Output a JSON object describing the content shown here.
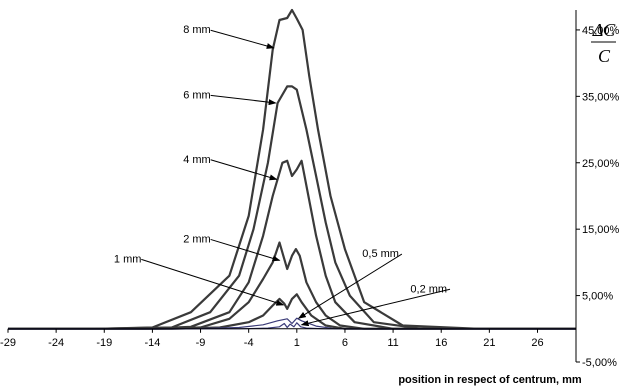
{
  "chart_data": {
    "type": "line",
    "xlabel": "position in respect of centrum, mm",
    "ylabel": {
      "numerator": "ΔC",
      "denominator": "C"
    },
    "xlim": [
      -29,
      30
    ],
    "ylim": [
      -5,
      48
    ],
    "x_ticks": [
      -29,
      -24,
      -19,
      -14,
      -9,
      -4,
      1,
      6,
      11,
      16,
      21,
      26
    ],
    "x_tick_labels": [
      "-29",
      "-24",
      "-19",
      "-14",
      "-9",
      "-4",
      "1",
      "6",
      "11",
      "16",
      "21",
      "26"
    ],
    "y_ticks": [
      -5,
      5,
      15,
      25,
      35,
      45
    ],
    "y_tick_labels": [
      "-5,00%",
      "5,00%",
      "15,00%",
      "25,00%",
      "35,00%",
      "45,00%"
    ],
    "legend": "none",
    "grid": false,
    "series": [
      {
        "name": "8 mm",
        "x": [
          -29,
          -20,
          -14,
          -10,
          -6,
          -4,
          -2.5,
          -1.5,
          -0.8,
          0,
          0.5,
          1,
          1.6,
          2.3,
          3.2,
          4.5,
          6,
          8,
          12,
          20,
          30
        ],
        "y": [
          0,
          0,
          0.2,
          2.5,
          8,
          17,
          30,
          42,
          46.5,
          46.8,
          48,
          46.7,
          45,
          38,
          30,
          20,
          12,
          4,
          0.5,
          0,
          0
        ]
      },
      {
        "name": "6 mm",
        "x": [
          -29,
          -20,
          -12,
          -8,
          -5,
          -3.5,
          -2,
          -1,
          0,
          0.5,
          1,
          2,
          3,
          4,
          5,
          6.5,
          9,
          14,
          30
        ],
        "y": [
          0,
          0,
          0.2,
          2.5,
          8,
          15,
          25,
          34,
          36.5,
          36.5,
          36,
          30,
          23,
          16,
          10,
          5,
          1,
          0,
          0
        ]
      },
      {
        "name": "4 mm",
        "x": [
          -29,
          -15,
          -10,
          -6,
          -4,
          -2.5,
          -1.5,
          -0.5,
          0,
          0.5,
          1,
          1.5,
          2.2,
          3,
          4,
          5,
          7,
          11,
          30
        ],
        "y": [
          0,
          0,
          0.3,
          2.5,
          7,
          14,
          20,
          25,
          25.3,
          23,
          24,
          25.3,
          20,
          14,
          8,
          4,
          1,
          0,
          0
        ]
      },
      {
        "name": "2 mm",
        "x": [
          -29,
          -14,
          -9,
          -6,
          -4,
          -2.5,
          -1.5,
          -0.8,
          -0.4,
          0,
          0.5,
          0.9,
          1.3,
          2,
          3,
          4,
          5.5,
          8,
          30
        ],
        "y": [
          0,
          0,
          0.2,
          1.5,
          4,
          7.5,
          10,
          13,
          11,
          9,
          11,
          12,
          11,
          7,
          4,
          2,
          0.5,
          0,
          0
        ]
      },
      {
        "name": "1 mm",
        "x": [
          -29,
          -12,
          -7,
          -4,
          -2.5,
          -1.5,
          -0.8,
          -0.3,
          0,
          0.5,
          1,
          1.5,
          2.5,
          4,
          6,
          30
        ],
        "y": [
          0,
          0,
          0.2,
          1,
          2,
          3.5,
          4.5,
          3.8,
          3,
          4.5,
          5.2,
          4,
          2,
          0.5,
          0,
          0
        ]
      },
      {
        "name": "0,5 mm",
        "x": [
          -29,
          -10,
          -5,
          -2.5,
          -1,
          0,
          0.5,
          1,
          1.5,
          3,
          5,
          30
        ],
        "y": [
          0,
          0,
          0.2,
          0.6,
          1.2,
          1.5,
          0.8,
          1.6,
          1.2,
          0.4,
          0,
          0
        ]
      },
      {
        "name": "0,2 mm",
        "x": [
          -29,
          -5,
          -2,
          -0.8,
          -0.3,
          0,
          0.3,
          0.7,
          1,
          1.4,
          2,
          4,
          30
        ],
        "y": [
          0,
          0,
          0.1,
          0.3,
          0.8,
          0.2,
          0.7,
          0.3,
          0.9,
          0.3,
          0.1,
          0,
          0
        ]
      }
    ],
    "annotations": [
      {
        "text": "8 mm",
        "label_x": -10.8,
        "label_y": 44.5,
        "arrow_to_x": -1.4,
        "arrow_to_y": 42.3
      },
      {
        "text": "6 mm",
        "label_x": -10.8,
        "label_y": 34.7,
        "arrow_to_x": -1.2,
        "arrow_to_y": 34.0
      },
      {
        "text": "4 mm",
        "label_x": -10.8,
        "label_y": 25.0,
        "arrow_to_x": -1.1,
        "arrow_to_y": 22.5
      },
      {
        "text": "2 mm",
        "label_x": -10.8,
        "label_y": 13.0,
        "arrow_to_x": -0.8,
        "arrow_to_y": 10.3
      },
      {
        "text": "1 mm",
        "label_x": -18.0,
        "label_y": 10.0,
        "arrow_to_x": -0.4,
        "arrow_to_y": 3.6
      },
      {
        "text": "0,5 mm",
        "label_x": 7.8,
        "label_y": 10.8,
        "arrow_to_x": 1.2,
        "arrow_to_y": 1.6
      },
      {
        "text": "0,2 mm",
        "label_x": 12.8,
        "label_y": 5.5,
        "arrow_to_x": 1.5,
        "arrow_to_y": 0.6
      }
    ],
    "colors": {
      "series": "#3a3a3a",
      "minor_series": "#3b3b78",
      "axis": "#000000"
    }
  }
}
